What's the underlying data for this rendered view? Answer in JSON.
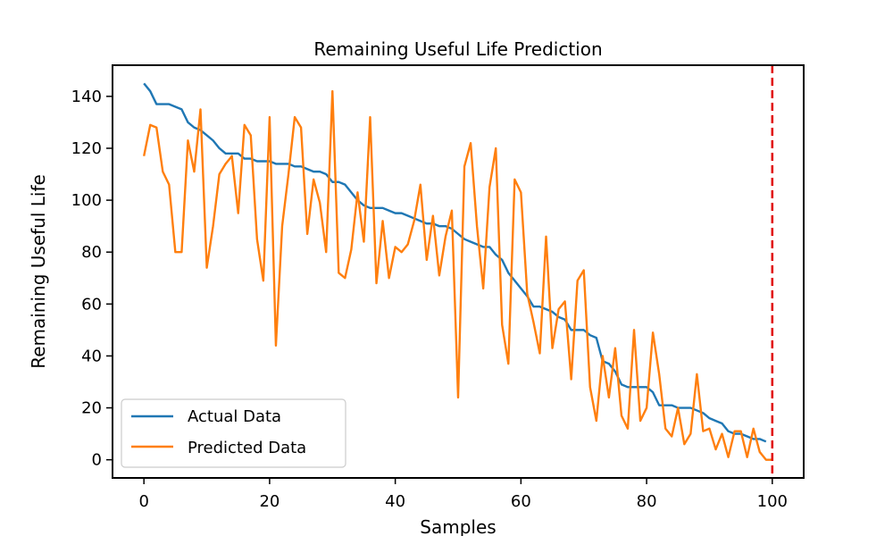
{
  "chart_data": {
    "type": "line",
    "title": "Remaining Useful Life Prediction",
    "xlabel": "Samples",
    "ylabel": "Remaining Useful Life",
    "xlim": [
      -5,
      105
    ],
    "ylim": [
      -7,
      152
    ],
    "xticks": [
      0,
      20,
      40,
      60,
      80,
      100
    ],
    "yticks": [
      0,
      20,
      40,
      60,
      80,
      100,
      120,
      140
    ],
    "grid": false,
    "legend_position": "lower-left",
    "vline": {
      "x": 100,
      "color": "#e00000",
      "style": "dashed"
    },
    "series": [
      {
        "name": "Actual Data",
        "color": "#1f77b4",
        "x": [
          0,
          1,
          2,
          3,
          4,
          5,
          6,
          7,
          8,
          9,
          10,
          11,
          12,
          13,
          14,
          15,
          16,
          17,
          18,
          19,
          20,
          21,
          22,
          23,
          24,
          25,
          26,
          27,
          28,
          29,
          30,
          31,
          32,
          33,
          34,
          35,
          36,
          37,
          38,
          39,
          40,
          41,
          42,
          43,
          44,
          45,
          46,
          47,
          48,
          49,
          50,
          51,
          52,
          53,
          54,
          55,
          56,
          57,
          58,
          59,
          60,
          61,
          62,
          63,
          64,
          65,
          66,
          67,
          68,
          69,
          70,
          71,
          72,
          73,
          74,
          75,
          76,
          77,
          78,
          79,
          80,
          81,
          82,
          83,
          84,
          85,
          86,
          87,
          88,
          89,
          90,
          91,
          92,
          93,
          94,
          95,
          96,
          97,
          98,
          99
        ],
        "values": [
          145,
          142,
          137,
          137,
          137,
          136,
          135,
          130,
          128,
          127,
          125,
          123,
          120,
          118,
          118,
          118,
          116,
          116,
          115,
          115,
          115,
          114,
          114,
          114,
          113,
          113,
          112,
          111,
          111,
          110,
          107,
          107,
          106,
          103,
          100,
          98,
          97,
          97,
          97,
          96,
          95,
          95,
          94,
          93,
          92,
          91,
          91,
          90,
          90,
          89,
          87,
          85,
          84,
          83,
          82,
          82,
          79,
          77,
          72,
          69,
          66,
          63,
          59,
          59,
          58,
          57,
          55,
          54,
          50,
          50,
          50,
          48,
          47,
          38,
          37,
          34,
          29,
          28,
          28,
          28,
          28,
          26,
          21,
          21,
          21,
          20,
          20,
          20,
          19,
          18,
          16,
          15,
          14,
          11,
          10,
          10,
          9,
          8,
          8,
          7
        ],
        "x_end": 100
      },
      {
        "name": "Predicted Data",
        "color": "#ff7f0e",
        "x": [
          0,
          1,
          2,
          3,
          4,
          5,
          6,
          7,
          8,
          9,
          10,
          11,
          12,
          13,
          14,
          15,
          16,
          17,
          18,
          19,
          20,
          21,
          22,
          23,
          24,
          25,
          26,
          27,
          28,
          29,
          30,
          31,
          32,
          33,
          34,
          35,
          36,
          37,
          38,
          39,
          40,
          41,
          42,
          43,
          44,
          45,
          46,
          47,
          48,
          49,
          50,
          51,
          52,
          53,
          54,
          55,
          56,
          57,
          58,
          59,
          60,
          61,
          62,
          63,
          64,
          65,
          66,
          67,
          68,
          69,
          70,
          71,
          72,
          73,
          74,
          75,
          76,
          77,
          78,
          79,
          80,
          81,
          82,
          83,
          84,
          85,
          86,
          87,
          88,
          89,
          90,
          91,
          92,
          93,
          94,
          95,
          96,
          97,
          98,
          99,
          100
        ],
        "values": [
          117,
          129,
          128,
          111,
          106,
          80,
          80,
          123,
          111,
          135,
          74,
          90,
          110,
          114,
          117,
          95,
          129,
          125,
          85,
          69,
          132,
          44,
          90,
          110,
          132,
          128,
          87,
          108,
          99,
          80,
          142,
          72,
          70,
          81,
          103,
          84,
          132,
          68,
          92,
          70,
          82,
          80,
          83,
          92,
          106,
          77,
          94,
          71,
          86,
          96,
          24,
          113,
          122,
          90,
          66,
          105,
          120,
          52,
          37,
          108,
          103,
          64,
          53,
          41,
          86,
          43,
          58,
          61,
          31,
          69,
          73,
          28,
          15,
          40,
          24,
          43,
          17,
          12,
          50,
          15,
          20,
          49,
          33,
          12,
          9,
          20,
          6,
          10,
          33,
          11,
          12,
          4,
          10,
          1,
          11,
          11,
          1,
          12,
          3,
          0,
          0
        ]
      }
    ]
  }
}
